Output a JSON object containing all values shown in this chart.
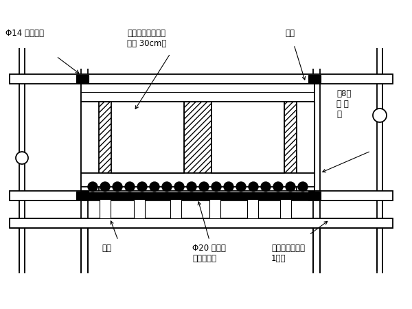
{
  "bg_color": "#ffffff",
  "line_color": "#000000",
  "figsize": [
    6.0,
    4.5
  ],
  "dpi": 100,
  "labels": {
    "phi14": "Φ14 对拉螺杆",
    "pour_layer": "第一次浇筑层（顶",
    "pour_layer2": "板底 30cm）",
    "side_mold": "侧模",
    "channel_steel": "【8槽",
    "channel_steel2": "钔 横",
    "channel_steel3": "架",
    "top_support": "顶托",
    "phi20": "Φ20 螺纹钔",
    "phi20_2": "筋底模骨架",
    "platform": "操作平台（宽度",
    "platform2": "1米）"
  }
}
